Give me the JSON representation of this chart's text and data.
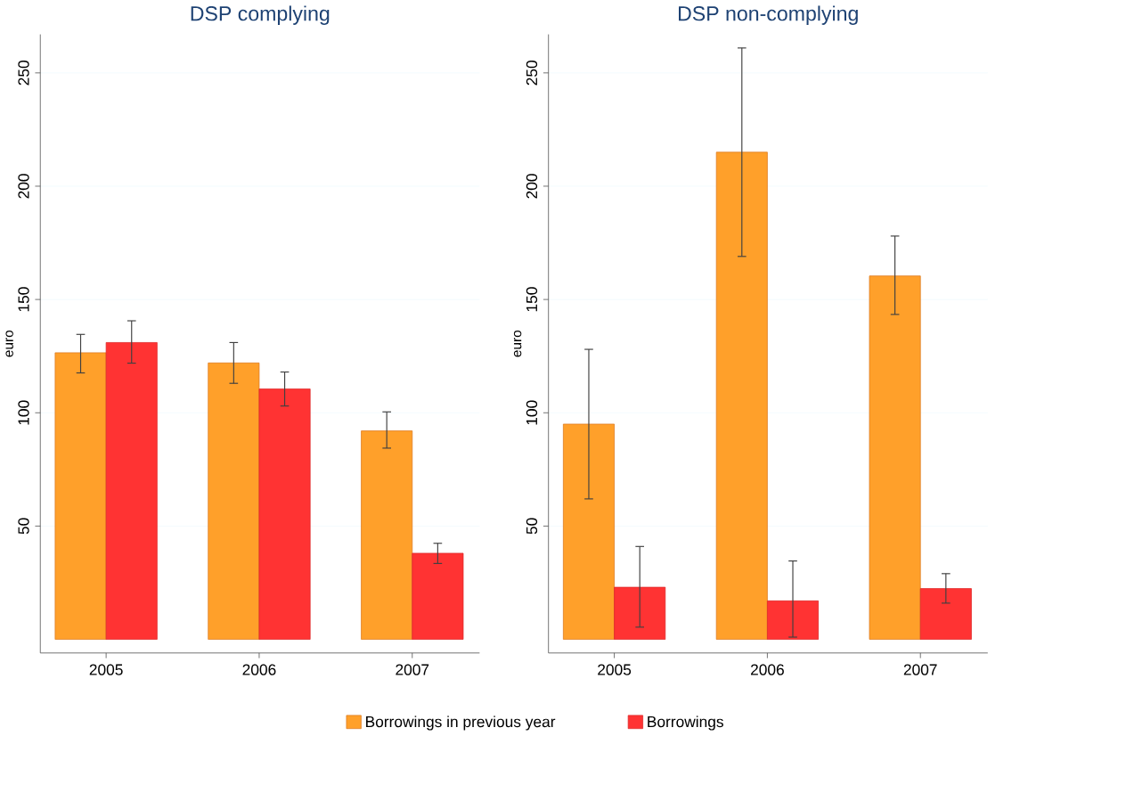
{
  "chart_data": [
    {
      "type": "bar",
      "title": "DSP complying",
      "ylabel": "euro",
      "categories": [
        "2005",
        "2006",
        "2007"
      ],
      "ylim": [
        -6,
        267
      ],
      "yticks": [
        50,
        100,
        150,
        200,
        250
      ],
      "grid": "y",
      "legend": "bottom",
      "series": [
        {
          "name": "Borrowings in previous year",
          "color": "#ffa02a",
          "values": [
            126.5,
            122,
            92
          ],
          "errors": [
            [
              117.6,
              134.6
            ],
            [
              113,
              131
            ],
            [
              84.4,
              100.4
            ]
          ]
        },
        {
          "name": "Borrowings",
          "color": "#ff3333",
          "values": [
            131,
            110.5,
            38
          ],
          "errors": [
            [
              121.9,
              140.6
            ],
            [
              103,
              118
            ],
            [
              33.5,
              42.4
            ]
          ]
        }
      ]
    },
    {
      "type": "bar",
      "title": "DSP non-complying",
      "ylabel": "euro",
      "categories": [
        "2005",
        "2006",
        "2007"
      ],
      "ylim": [
        -6,
        267
      ],
      "yticks": [
        50,
        100,
        150,
        200,
        250
      ],
      "grid": "y",
      "series": [
        {
          "color": "#ffa02a",
          "values": [
            95,
            215,
            160.4
          ],
          "errors": [
            [
              62,
              128
            ],
            [
              169,
              261
            ],
            [
              143.4,
              178
            ]
          ]
        },
        {
          "color": "#ff3333",
          "values": [
            23,
            17,
            22.4
          ],
          "errors": [
            [
              5.4,
              41
            ],
            [
              1,
              34.6
            ],
            [
              16,
              29
            ]
          ]
        }
      ]
    }
  ]
}
